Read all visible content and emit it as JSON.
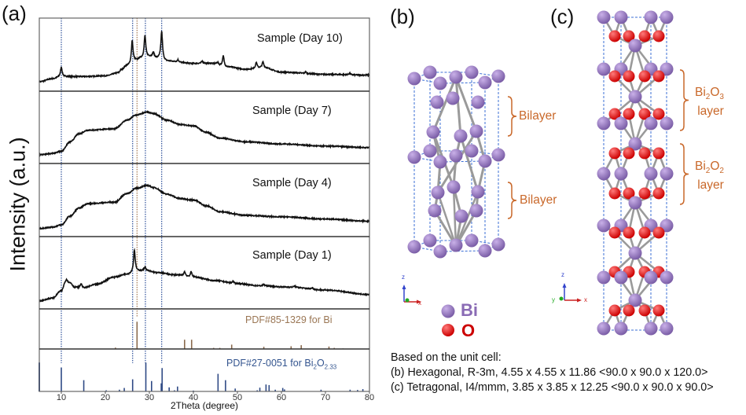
{
  "panels": {
    "a": "(a)",
    "b": "(b)",
    "c": "(c)"
  },
  "chart_data": {
    "type": "line",
    "xlabel": "2Theta (degree)",
    "ylabel": "Intensity (a.u.)",
    "xlim": [
      5,
      80
    ],
    "xticks": [
      "10",
      "20",
      "30",
      "40",
      "50",
      "60",
      "70",
      "80"
    ],
    "grid": false,
    "reference_lines": {
      "blue_dotted": [
        10,
        26.2,
        29.1,
        32.8
      ],
      "brown_dotted": [
        27.2
      ],
      "colors": {
        "blue": "#2c4f9a",
        "brown": "#a57a55"
      }
    },
    "series": [
      {
        "name": "Sample (Day 10)",
        "baseline": [
          [
            5,
            0.13
          ],
          [
            8,
            0.17
          ],
          [
            10,
            0.2
          ],
          [
            15,
            0.2
          ],
          [
            20,
            0.21
          ],
          [
            23,
            0.25
          ],
          [
            25,
            0.35
          ],
          [
            27,
            0.42
          ],
          [
            28,
            0.45
          ],
          [
            30,
            0.47
          ],
          [
            32,
            0.45
          ],
          [
            34,
            0.41
          ],
          [
            40,
            0.38
          ],
          [
            44,
            0.38
          ],
          [
            48,
            0.33
          ],
          [
            52,
            0.3
          ],
          [
            56,
            0.32
          ],
          [
            60,
            0.26
          ],
          [
            70,
            0.23
          ],
          [
            80,
            0.22
          ]
        ],
        "peaks": [
          [
            10,
            0.13
          ],
          [
            23.5,
            0.03
          ],
          [
            26.1,
            0.3
          ],
          [
            29.0,
            0.3
          ],
          [
            30.9,
            0.07
          ],
          [
            32.8,
            0.38
          ],
          [
            36.5,
            0.03
          ],
          [
            42,
            0.03
          ],
          [
            45.5,
            0.03
          ],
          [
            46.8,
            0.14
          ],
          [
            54.3,
            0.08
          ],
          [
            55.8,
            0.08
          ],
          [
            65.5,
            0.02
          ],
          [
            75.5,
            0.02
          ]
        ]
      },
      {
        "name": "Sample (Day 7)",
        "baseline": [
          [
            5,
            0.12
          ],
          [
            8,
            0.14
          ],
          [
            10,
            0.17
          ],
          [
            12,
            0.3
          ],
          [
            14,
            0.41
          ],
          [
            16,
            0.46
          ],
          [
            22,
            0.48
          ],
          [
            25,
            0.6
          ],
          [
            27,
            0.67
          ],
          [
            29.5,
            0.71
          ],
          [
            31,
            0.69
          ],
          [
            34,
            0.6
          ],
          [
            37,
            0.54
          ],
          [
            40,
            0.52
          ],
          [
            43,
            0.43
          ],
          [
            46,
            0.35
          ],
          [
            52,
            0.3
          ],
          [
            60,
            0.27
          ],
          [
            70,
            0.24
          ],
          [
            80,
            0.22
          ]
        ],
        "peaks": []
      },
      {
        "name": "Sample (Day 4)",
        "baseline": [
          [
            5,
            0.11
          ],
          [
            8,
            0.13
          ],
          [
            10,
            0.16
          ],
          [
            12,
            0.28
          ],
          [
            14,
            0.39
          ],
          [
            16,
            0.45
          ],
          [
            22,
            0.47
          ],
          [
            25,
            0.59
          ],
          [
            27,
            0.66
          ],
          [
            29.5,
            0.7
          ],
          [
            31,
            0.67
          ],
          [
            34,
            0.58
          ],
          [
            37,
            0.52
          ],
          [
            40,
            0.5
          ],
          [
            43,
            0.42
          ],
          [
            46,
            0.34
          ],
          [
            52,
            0.29
          ],
          [
            60,
            0.27
          ],
          [
            70,
            0.24
          ],
          [
            80,
            0.21
          ]
        ],
        "peaks": []
      },
      {
        "name": "Sample (Day 1)",
        "baseline": [
          [
            5,
            0.11
          ],
          [
            8,
            0.15
          ],
          [
            10,
            0.25
          ],
          [
            11,
            0.37
          ],
          [
            12,
            0.36
          ],
          [
            13,
            0.3
          ],
          [
            15,
            0.29
          ],
          [
            18,
            0.34
          ],
          [
            22,
            0.44
          ],
          [
            25,
            0.48
          ],
          [
            27,
            0.52
          ],
          [
            29,
            0.53
          ],
          [
            32,
            0.5
          ],
          [
            36,
            0.47
          ],
          [
            40,
            0.44
          ],
          [
            45,
            0.39
          ],
          [
            50,
            0.35
          ],
          [
            55,
            0.32
          ],
          [
            62,
            0.3
          ],
          [
            70,
            0.26
          ],
          [
            80,
            0.2
          ]
        ],
        "peaks": [
          [
            11.2,
            0.04
          ],
          [
            14.5,
            0.06
          ],
          [
            26.6,
            0.3
          ],
          [
            29,
            0.05
          ],
          [
            38,
            0.06
          ],
          [
            39.5,
            0.07
          ],
          [
            49,
            0.03
          ],
          [
            56,
            0.02
          ],
          [
            63,
            0.02
          ],
          [
            67,
            0.02
          ]
        ]
      }
    ],
    "references": [
      {
        "label": {
          "text": "PDF#85-1329 for Bi"
        },
        "color": "#8a6a4e",
        "text_color": "#9a7654",
        "sticks": [
          [
            22.3,
            5
          ],
          [
            27.2,
            100
          ],
          [
            38,
            34
          ],
          [
            39.6,
            34
          ],
          [
            44.6,
            4
          ],
          [
            46,
            4
          ],
          [
            48.7,
            16
          ],
          [
            56,
            8
          ],
          [
            62.2,
            10
          ],
          [
            64.5,
            14
          ],
          [
            70.8,
            9
          ],
          [
            72,
            4
          ],
          [
            74,
            2
          ]
        ]
      },
      {
        "label": {
          "text": "PDF#27-0051 for Bi",
          "sub1": "2",
          "mid": "O",
          "sub2": "2.33"
        },
        "color": "#2f4a85",
        "text_color": "#34558f",
        "sticks": [
          [
            5,
            100
          ],
          [
            10,
            83
          ],
          [
            15.1,
            39
          ],
          [
            20.2,
            4
          ],
          [
            23.2,
            6
          ],
          [
            24.3,
            12
          ],
          [
            26.2,
            42
          ],
          [
            29.2,
            100
          ],
          [
            30.5,
            36
          ],
          [
            32.7,
            28
          ],
          [
            32.9,
            81
          ],
          [
            34.5,
            14
          ],
          [
            35.7,
            4
          ],
          [
            36.4,
            17
          ],
          [
            40,
            3
          ],
          [
            45.6,
            61
          ],
          [
            47.3,
            39
          ],
          [
            49.5,
            10
          ],
          [
            54.5,
            4
          ],
          [
            55.1,
            13
          ],
          [
            56.5,
            24
          ],
          [
            57.2,
            22
          ],
          [
            58.6,
            6
          ],
          [
            60.3,
            12
          ],
          [
            60.7,
            7
          ],
          [
            69,
            6
          ],
          [
            75.6,
            6
          ],
          [
            77.3,
            5
          ],
          [
            78.5,
            8
          ]
        ]
      }
    ]
  },
  "structures": {
    "bilayer_label_1": "Bilayer",
    "bilayer_label_2": "Bilayer",
    "bi2o3": {
      "pre": "Bi",
      "s1": "2",
      "mid": "O",
      "s2": "3",
      "line2": "layer"
    },
    "bi2o2": {
      "pre": "Bi",
      "s1": "2",
      "mid": "O",
      "s2": "2",
      "line2": "layer"
    },
    "axis_labels": {
      "z": "z",
      "x": "x",
      "y": "y"
    },
    "colors": {
      "Bi": "#7b5ea7",
      "O": "#cc0000",
      "cell": "#3b6fd6",
      "bond": "#9a9a9a",
      "annotation": "#c9682a"
    }
  },
  "legend": {
    "bi": "Bi",
    "o": "O"
  },
  "notes": {
    "heading": "Based on the unit cell:",
    "b": "(b) Hexagonal,  R-3m, 4.55 x 4.55 x 11.86 <90.0 x 90.0 x 120.0>",
    "c": "(c) Tetragonal, I4/mmm, 3.85 x 3.85 x 12.25 <90.0 x 90.0 x 90.0>"
  }
}
